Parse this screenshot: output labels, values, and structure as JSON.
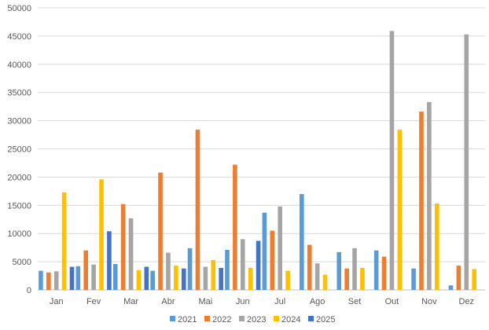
{
  "chart_data": {
    "type": "bar",
    "categories": [
      "Jan",
      "Fev",
      "Mar",
      "Abr",
      "Mai",
      "Jun",
      "Jul",
      "Ago",
      "Set",
      "Out",
      "Nov",
      "Dez"
    ],
    "series": [
      {
        "name": "2021",
        "color": "#5B9BD5",
        "values": [
          3400,
          4200,
          4600,
          3400,
          7400,
          7100,
          13700,
          17000,
          6700,
          7000,
          3800,
          800
        ]
      },
      {
        "name": "2022",
        "color": "#ED7D31",
        "values": [
          3100,
          7000,
          15200,
          20800,
          28400,
          22200,
          10500,
          8000,
          3800,
          5900,
          31600,
          4300
        ]
      },
      {
        "name": "2023",
        "color": "#A5A5A5",
        "values": [
          3300,
          4500,
          12700,
          6600,
          4100,
          9000,
          14800,
          4700,
          7400,
          45900,
          33300,
          45300
        ]
      },
      {
        "name": "2024",
        "color": "#FFC000",
        "values": [
          17300,
          19600,
          3500,
          4300,
          5300,
          3900,
          3400,
          2700,
          3900,
          28400,
          15300,
          3700
        ]
      },
      {
        "name": "2025",
        "color": "#4472C4",
        "values": [
          4100,
          10400,
          4100,
          3800,
          3900,
          8700,
          null,
          null,
          null,
          null,
          null,
          null
        ]
      }
    ],
    "yticks": [
      "0",
      "5000",
      "10000",
      "15000",
      "20000",
      "25000",
      "30000",
      "35000",
      "40000",
      "45000",
      "50000"
    ],
    "ylim": [
      0,
      50000
    ],
    "grid": true,
    "legend": "bottom",
    "title": "",
    "xlabel": "",
    "ylabel": ""
  }
}
